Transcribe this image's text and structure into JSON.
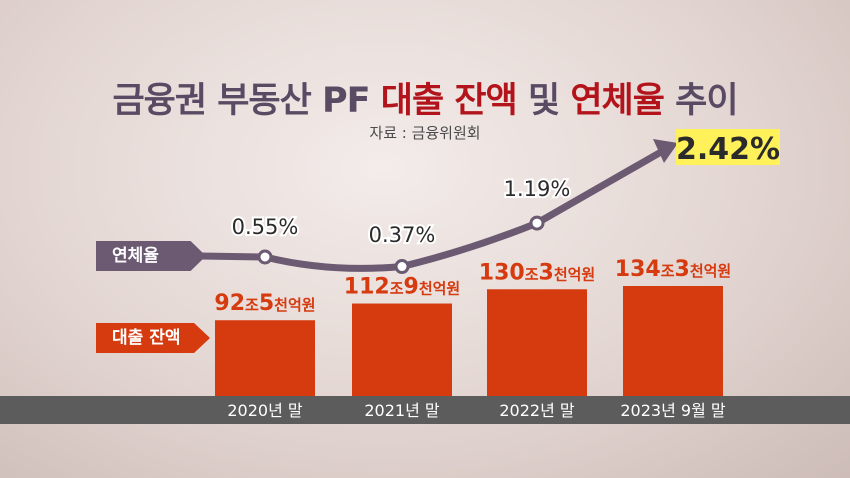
{
  "title": {
    "part1": "금융권 부동산 PF",
    "part2": "대출 잔액",
    "part3": "및",
    "part4": "연체율",
    "part5": "추이"
  },
  "source": "자료 : 금융위원회",
  "legend": {
    "rate_label": "연체율",
    "loan_label": "대출 잔액"
  },
  "colors": {
    "bar": "#d63a0f",
    "bar_label": "#d63a0f",
    "line": "#6b5a72",
    "axis_band": "#5c5c5c",
    "highlight": "#fff15a",
    "title_accent": "#b3141b",
    "title_plain": "#5a4a63"
  },
  "chart_data": {
    "type": "bar",
    "categories": [
      "2020년 말",
      "2021년 말",
      "2022년 말",
      "2023년 9월 말"
    ],
    "series": [
      {
        "name": "대출 잔액",
        "unit": "천억원",
        "values": [
          925,
          1129,
          1303,
          1343
        ],
        "labels": [
          {
            "major": "92",
            "major_unit": "조",
            "minor": "5",
            "minor_unit": "천억원"
          },
          {
            "major": "112",
            "major_unit": "조",
            "minor": "9",
            "minor_unit": "천억원"
          },
          {
            "major": "130",
            "major_unit": "조",
            "minor": "3",
            "minor_unit": "천억원"
          },
          {
            "major": "134",
            "major_unit": "조",
            "minor": "3",
            "minor_unit": "천억원"
          }
        ]
      },
      {
        "name": "연체율",
        "type": "line",
        "values": [
          0.55,
          0.37,
          1.19,
          2.42
        ],
        "labels": [
          "0.55%",
          "0.37%",
          "1.19%",
          "2.42%"
        ],
        "last_point_arrow": true,
        "highlight_last": true
      }
    ]
  }
}
